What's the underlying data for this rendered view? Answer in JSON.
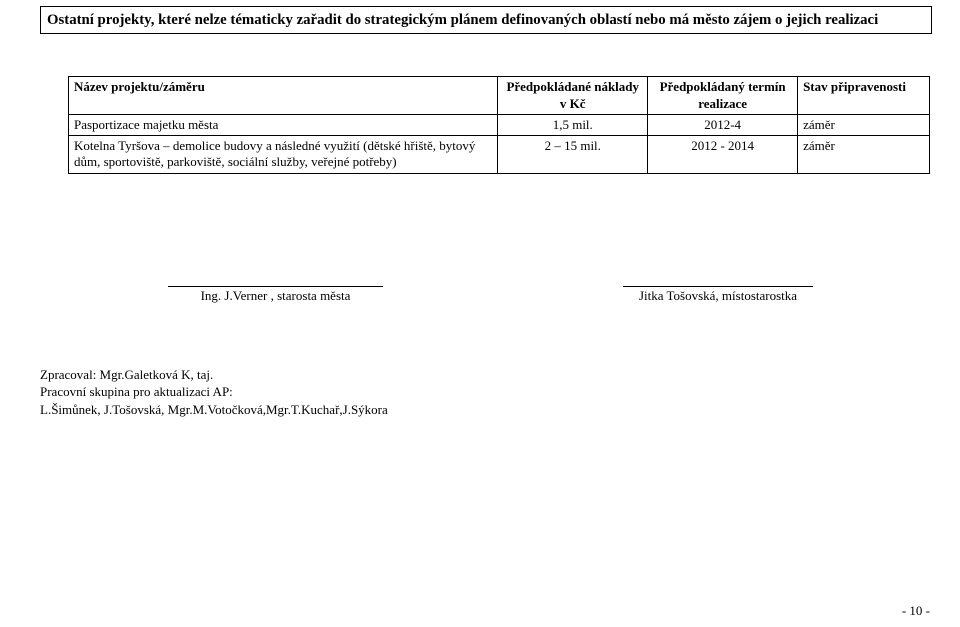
{
  "title": "Ostatní projekty, které nelze tématicky zařadit do strategickým plánem definovaných oblastí nebo má město zájem o jejich realizaci",
  "table": {
    "headers": {
      "name": "Název projektu/záměru",
      "cost": "Předpokládané náklady v Kč",
      "term": "Předpokládaný termín realizace",
      "state": "Stav připravenosti"
    },
    "rows": [
      {
        "name": "Pasportizace majetku města",
        "cost": "1,5 mil.",
        "term": "2012-4",
        "state": "záměr"
      },
      {
        "name": "Kotelna Tyršova – demolice budovy a následné využití (dětské hřiště, bytový dům, sportoviště, parkoviště, sociální služby, veřejné potřeby)",
        "cost": "2 – 15 mil.",
        "term": "2012 - 2014",
        "state": "záměr"
      }
    ]
  },
  "signatures": {
    "left": "Ing. J.Verner , starosta města",
    "right": "Jitka Tošovská, místostarostka"
  },
  "footer": {
    "line1": "Zpracoval: Mgr.Galetková K, taj.",
    "line2": "Pracovní skupina pro aktualizaci AP:",
    "line3": "L.Šimůnek, J.Tošovská, Mgr.M.Votočková,Mgr.T.Kuchař,J.Sýkora"
  },
  "pageNumber": "- 10 -"
}
